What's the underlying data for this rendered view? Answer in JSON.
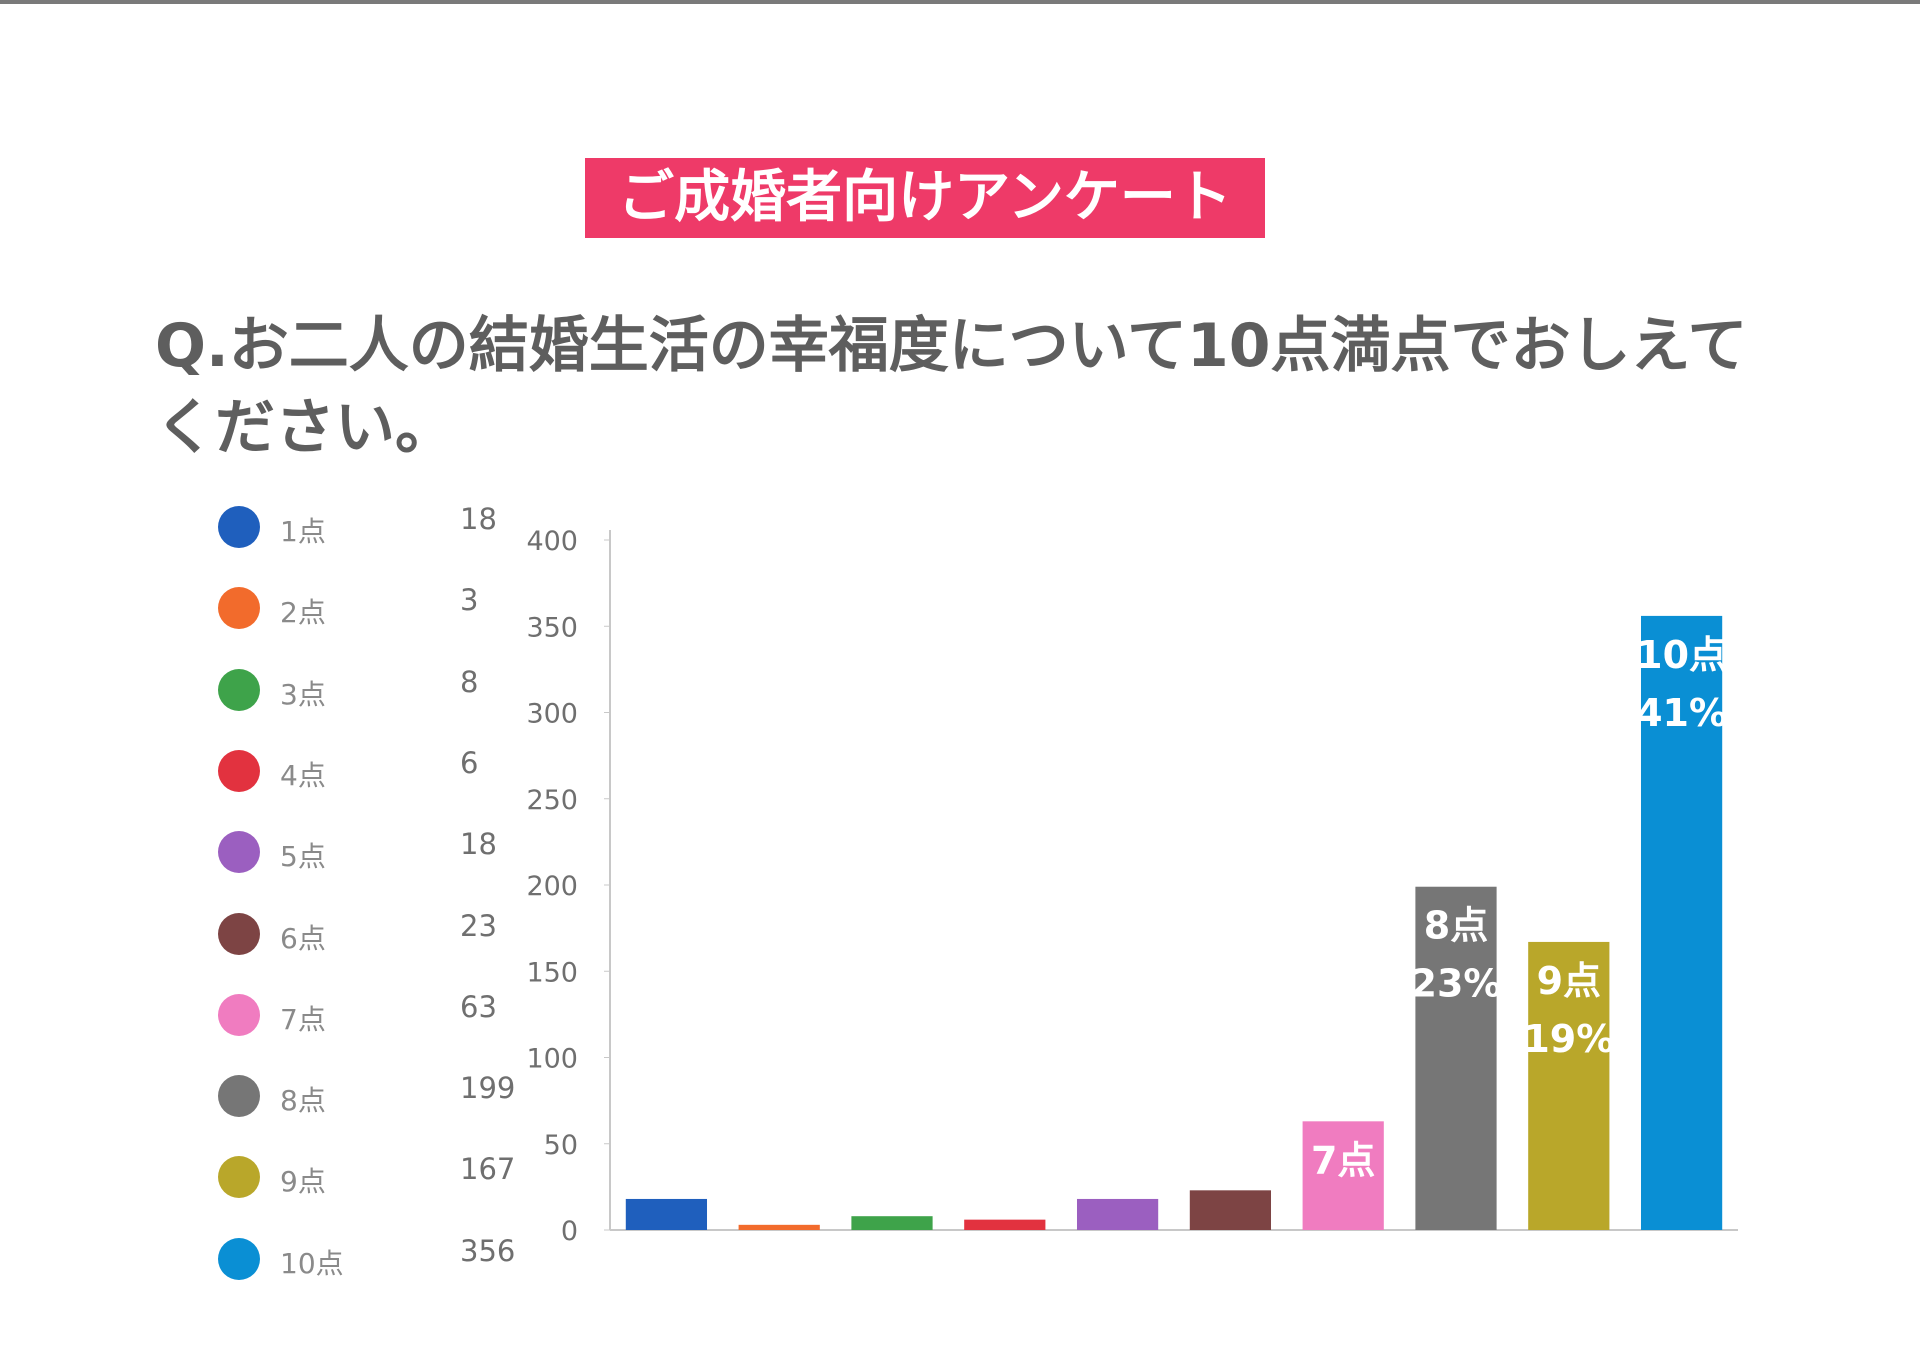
{
  "banner": {
    "text": "ご成婚者向けアンケート"
  },
  "question": {
    "text": "Q.お二人の結婚生活の幸福度について10点満点でおしえてください。"
  },
  "legend": {
    "items": [
      {
        "label": "1点",
        "count": "18",
        "color": "#1f5fbd"
      },
      {
        "label": "2点",
        "count": "3",
        "color": "#f26b2c"
      },
      {
        "label": "3点",
        "count": "8",
        "color": "#3ea34a"
      },
      {
        "label": "4点",
        "count": "6",
        "color": "#e2323f"
      },
      {
        "label": "5点",
        "count": "18",
        "color": "#9b5fc0"
      },
      {
        "label": "6点",
        "count": "23",
        "color": "#7d4444"
      },
      {
        "label": "7点",
        "count": "63",
        "color": "#f07cc0"
      },
      {
        "label": "8点",
        "count": "199",
        "color": "#767676"
      },
      {
        "label": "9点",
        "count": "167",
        "color": "#b9a72a"
      },
      {
        "label": "10点",
        "count": "356",
        "color": "#0a8fd4"
      }
    ]
  },
  "chart_data": {
    "type": "bar",
    "title": "",
    "xlabel": "",
    "ylabel": "",
    "categories": [
      "1点",
      "2点",
      "3点",
      "4点",
      "5点",
      "6点",
      "7点",
      "8点",
      "9点",
      "10点"
    ],
    "values": [
      18,
      3,
      8,
      6,
      18,
      23,
      63,
      199,
      167,
      356
    ],
    "colors": [
      "#1f5fbd",
      "#f26b2c",
      "#3ea34a",
      "#e2323f",
      "#9b5fc0",
      "#7d4444",
      "#f07cc0",
      "#767676",
      "#b9a72a",
      "#0a8fd4"
    ],
    "ylim": [
      0,
      400
    ],
    "yticks": [
      0,
      50,
      100,
      150,
      200,
      250,
      300,
      350,
      400
    ],
    "grid": false,
    "legend_position": "left",
    "annotations": [
      {
        "category": "7点",
        "lines": [
          "7点"
        ]
      },
      {
        "category": "8点",
        "lines": [
          "8点",
          "23%"
        ]
      },
      {
        "category": "9点",
        "lines": [
          "9点",
          "19%"
        ]
      },
      {
        "category": "10点",
        "lines": [
          "10点",
          "41%"
        ]
      }
    ]
  }
}
